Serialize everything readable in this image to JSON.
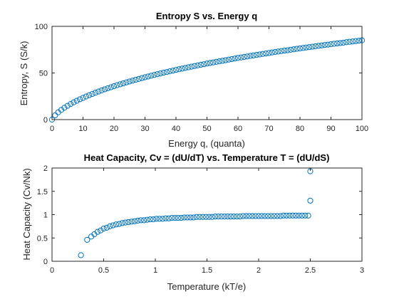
{
  "chart_data": [
    {
      "type": "scatter",
      "title": "Entropy S vs. Energy q",
      "xlabel": "Energy q, (quanta)",
      "ylabel": "Entropy, S (S/k)",
      "xlim": [
        0,
        100
      ],
      "ylim": [
        0,
        100
      ],
      "xticks": [
        0,
        10,
        20,
        30,
        40,
        50,
        60,
        70,
        80,
        90,
        100
      ],
      "yticks": [
        0,
        50,
        100
      ],
      "marker": "circle-open",
      "color": "#0072BD",
      "x": [
        0,
        1,
        2,
        3,
        4,
        5,
        6,
        7,
        8,
        9,
        10,
        11,
        12,
        13,
        14,
        15,
        16,
        17,
        18,
        19,
        20,
        21,
        22,
        23,
        24,
        25,
        26,
        27,
        28,
        29,
        30,
        31,
        32,
        33,
        34,
        35,
        36,
        37,
        38,
        39,
        40,
        41,
        42,
        43,
        44,
        45,
        46,
        47,
        48,
        49,
        50,
        51,
        52,
        53,
        54,
        55,
        56,
        57,
        58,
        59,
        60,
        61,
        62,
        63,
        64,
        65,
        66,
        67,
        68,
        69,
        70,
        71,
        72,
        73,
        74,
        75,
        76,
        77,
        78,
        79,
        80,
        81,
        82,
        83,
        84,
        85,
        86,
        87,
        88,
        89,
        90,
        91,
        92,
        93,
        94,
        95,
        96,
        97,
        98,
        99,
        100
      ],
      "y": [
        0.0,
        4.6,
        7.8,
        10.4,
        12.7,
        14.8,
        16.7,
        18.5,
        20.2,
        21.8,
        23.3,
        24.8,
        26.2,
        27.5,
        28.8,
        30.1,
        31.3,
        32.5,
        33.6,
        34.7,
        35.8,
        36.9,
        37.9,
        38.9,
        39.9,
        40.9,
        41.8,
        42.7,
        43.6,
        44.5,
        45.4,
        46.2,
        47.1,
        47.9,
        48.7,
        49.5,
        50.3,
        51.0,
        51.8,
        52.5,
        53.3,
        54.0,
        54.7,
        55.4,
        56.1,
        56.8,
        57.5,
        58.1,
        58.8,
        59.4,
        60.1,
        60.7,
        61.3,
        61.9,
        62.5,
        63.1,
        63.7,
        64.3,
        64.9,
        65.5,
        66.1,
        66.6,
        67.2,
        67.7,
        68.3,
        68.8,
        69.4,
        69.9,
        70.4,
        70.9,
        71.4,
        72.0,
        72.5,
        73.0,
        73.5,
        74.0,
        74.4,
        74.9,
        75.4,
        75.9,
        76.4,
        76.8,
        77.3,
        77.7,
        78.2,
        78.6,
        79.1,
        79.5,
        80.0,
        80.4,
        80.8,
        81.3,
        81.7,
        82.1,
        82.5,
        83.0,
        83.4,
        83.8,
        84.2,
        84.6,
        85.0
      ]
    },
    {
      "type": "scatter",
      "title": "Heat Capacity, Cv = (dU/dT) vs. Temperature T = (dU/dS)",
      "xlabel": "Temperature (kT/e)",
      "ylabel": "Heat Capacity (Cv/Nk)",
      "xlim": [
        0,
        3
      ],
      "ylim": [
        0,
        2
      ],
      "xticks": [
        0,
        0.5,
        1,
        1.5,
        2,
        2.5,
        3
      ],
      "yticks": [
        0,
        0.5,
        1,
        1.5,
        2
      ],
      "marker": "circle-open",
      "color": "#0072BD",
      "x": [
        0.28,
        0.34,
        0.38,
        0.41,
        0.44,
        0.47,
        0.5,
        0.53,
        0.56,
        0.59,
        0.62,
        0.65,
        0.68,
        0.71,
        0.74,
        0.77,
        0.8,
        0.83,
        0.86,
        0.89,
        0.92,
        0.95,
        0.98,
        1.01,
        1.04,
        1.07,
        1.1,
        1.13,
        1.16,
        1.19,
        1.22,
        1.25,
        1.28,
        1.31,
        1.34,
        1.37,
        1.4,
        1.43,
        1.46,
        1.49,
        1.52,
        1.55,
        1.58,
        1.61,
        1.64,
        1.67,
        1.7,
        1.73,
        1.76,
        1.79,
        1.82,
        1.85,
        1.88,
        1.91,
        1.94,
        1.97,
        2.0,
        2.03,
        2.06,
        2.09,
        2.12,
        2.15,
        2.18,
        2.21,
        2.24,
        2.27,
        2.3,
        2.33,
        2.36,
        2.39,
        2.42,
        2.45,
        2.48,
        2.5,
        2.5
      ],
      "y": [
        0.13,
        0.46,
        0.53,
        0.58,
        0.63,
        0.66,
        0.7,
        0.72,
        0.75,
        0.77,
        0.79,
        0.8,
        0.82,
        0.83,
        0.84,
        0.85,
        0.86,
        0.87,
        0.88,
        0.88,
        0.89,
        0.9,
        0.9,
        0.91,
        0.91,
        0.91,
        0.92,
        0.92,
        0.93,
        0.93,
        0.93,
        0.93,
        0.94,
        0.94,
        0.94,
        0.94,
        0.95,
        0.95,
        0.95,
        0.95,
        0.95,
        0.95,
        0.96,
        0.96,
        0.96,
        0.96,
        0.96,
        0.96,
        0.96,
        0.96,
        0.96,
        0.97,
        0.97,
        0.97,
        0.97,
        0.97,
        0.97,
        0.97,
        0.97,
        0.97,
        0.97,
        0.97,
        0.97,
        0.97,
        0.98,
        0.98,
        0.98,
        0.98,
        0.98,
        0.98,
        0.98,
        0.98,
        0.98,
        1.3,
        1.93
      ]
    }
  ]
}
